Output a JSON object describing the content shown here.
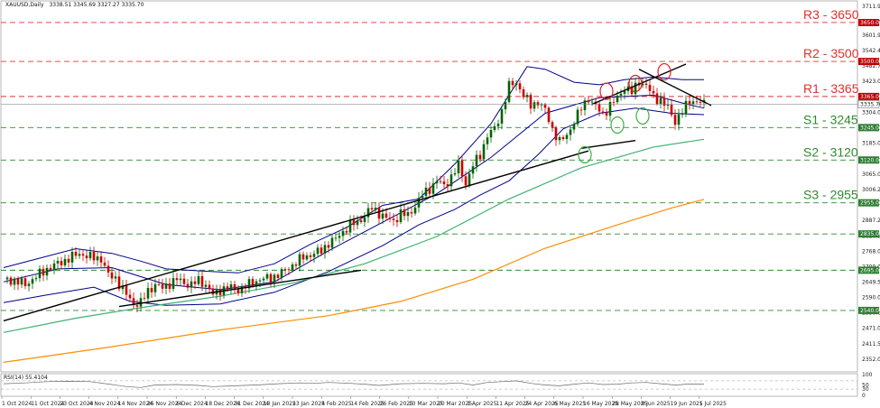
{
  "header": {
    "symbol": "XAUUSD,Daily",
    "ohlc": "3338.51 3345.69 3327.27 3335.70"
  },
  "rsi_header": "RSI(14) 55.4104",
  "chart_data": {
    "type": "candlestick",
    "title": "",
    "price_ylim": [
      2310,
      3730
    ],
    "y_ticks": [
      "3711.90",
      "3651.30",
      "3601.90",
      "3542.40",
      "3482.70",
      "3423.00",
      "3365.00",
      "3304.00",
      "3244.00",
      "3185.00",
      "3120.00",
      "3065.00",
      "3006.20",
      "2955.00",
      "2887.20",
      "2826.90",
      "2768.00",
      "2709.00",
      "2649.50",
      "2590.00",
      "2530.60",
      "2471.05",
      "2411.50",
      "2352.00"
    ],
    "current_price": "3335.70",
    "levels": [
      {
        "label": "R3 - 3650",
        "value": 3650,
        "tag": "3650.00",
        "kind": "resistance"
      },
      {
        "label": "R2 - 3500",
        "value": 3500,
        "tag": "3500.00",
        "kind": "resistance"
      },
      {
        "label": "R1 - 3365",
        "value": 3365,
        "tag": "3365.00",
        "kind": "resistance"
      },
      {
        "label": "S1 - 3245",
        "value": 3245,
        "tag": "3245.00",
        "kind": "support"
      },
      {
        "label": "S2 - 3120",
        "value": 3120,
        "tag": "3120.00",
        "kind": "support"
      },
      {
        "label": "S3 - 2955",
        "value": 2955,
        "tag": "2955.00",
        "kind": "support"
      },
      {
        "label": "",
        "value": 2835,
        "tag": "2835.00",
        "kind": "support"
      },
      {
        "label": "",
        "value": 2695,
        "tag": "2695.00",
        "kind": "support"
      },
      {
        "label": "",
        "value": 2540,
        "tag": "2540.00",
        "kind": "support"
      }
    ],
    "x_labels": [
      "1 Oct 2024",
      "11 Oct 2024",
      "23 Oct 2024",
      "4 Nov 2024",
      "14 Nov 2024",
      "26 Nov 2024",
      "6 Dec 2024",
      "18 Dec 2024",
      "31 Dec 2024",
      "13 Jan 2025",
      "23 Jan 2025",
      "4 Feb 2025",
      "14 Feb 2025",
      "26 Feb 2025",
      "10 Mar 2025",
      "20 Mar 2025",
      "1 Apr 2025",
      "11 Apr 2025",
      "24 Apr 2025",
      "6 May 2025",
      "16 May 2025",
      "28 May 2025",
      "9 Jun 2025",
      "19 Jun 2025",
      "1 Jul 2025"
    ],
    "price_path": [
      [
        0,
        2660
      ],
      [
        3,
        2655
      ],
      [
        6,
        2640
      ],
      [
        9,
        2670
      ],
      [
        12,
        2700
      ],
      [
        15,
        2720
      ],
      [
        18,
        2740
      ],
      [
        21,
        2760
      ],
      [
        24,
        2745
      ],
      [
        27,
        2740
      ],
      [
        29,
        2675
      ],
      [
        31,
        2665
      ],
      [
        33,
        2620
      ],
      [
        36,
        2565
      ],
      [
        38,
        2570
      ],
      [
        40,
        2615
      ],
      [
        42,
        2640
      ],
      [
        44,
        2625
      ],
      [
        46,
        2645
      ],
      [
        48,
        2660
      ],
      [
        50,
        2645
      ],
      [
        52,
        2640
      ],
      [
        54,
        2655
      ],
      [
        56,
        2640
      ],
      [
        58,
        2600
      ],
      [
        60,
        2620
      ],
      [
        62,
        2630
      ],
      [
        65,
        2620
      ],
      [
        68,
        2640
      ],
      [
        71,
        2660
      ],
      [
        74,
        2665
      ],
      [
        77,
        2685
      ],
      [
        80,
        2715
      ],
      [
        83,
        2745
      ],
      [
        86,
        2760
      ],
      [
        88,
        2770
      ],
      [
        90,
        2800
      ],
      [
        92,
        2815
      ],
      [
        94,
        2845
      ],
      [
        96,
        2870
      ],
      [
        98,
        2880
      ],
      [
        100,
        2905
      ],
      [
        102,
        2935
      ],
      [
        104,
        2915
      ],
      [
        106,
        2895
      ],
      [
        108,
        2885
      ],
      [
        110,
        2915
      ],
      [
        112,
        2905
      ],
      [
        114,
        2945
      ],
      [
        116,
        2985
      ],
      [
        118,
        3010
      ],
      [
        120,
        3040
      ],
      [
        122,
        3020
      ],
      [
        124,
        3055
      ],
      [
        126,
        3100
      ],
      [
        128,
        3030
      ],
      [
        130,
        3100
      ],
      [
        132,
        3140
      ],
      [
        134,
        3215
      ],
      [
        136,
        3240
      ],
      [
        138,
        3310
      ],
      [
        140,
        3405
      ],
      [
        142,
        3420
      ],
      [
        144,
        3370
      ],
      [
        146,
        3330
      ],
      [
        148,
        3345
      ],
      [
        150,
        3310
      ],
      [
        152,
        3240
      ],
      [
        154,
        3190
      ],
      [
        156,
        3215
      ],
      [
        158,
        3270
      ],
      [
        160,
        3320
      ],
      [
        162,
        3360
      ],
      [
        164,
        3325
      ],
      [
        166,
        3295
      ],
      [
        168,
        3330
      ],
      [
        170,
        3360
      ],
      [
        172,
        3400
      ],
      [
        174,
        3380
      ],
      [
        176,
        3425
      ],
      [
        178,
        3405
      ],
      [
        180,
        3365
      ],
      [
        182,
        3350
      ],
      [
        184,
        3320
      ],
      [
        186,
        3270
      ],
      [
        188,
        3305
      ],
      [
        190,
        3350
      ],
      [
        192,
        3345
      ],
      [
        194,
        3336
      ]
    ],
    "bollinger": {
      "upper": [
        [
          0,
          2705
        ],
        [
          20,
          2778
        ],
        [
          30,
          2760
        ],
        [
          38,
          2730
        ],
        [
          45,
          2700
        ],
        [
          55,
          2692
        ],
        [
          65,
          2685
        ],
        [
          75,
          2720
        ],
        [
          85,
          2795
        ],
        [
          95,
          2860
        ],
        [
          105,
          2945
        ],
        [
          115,
          2970
        ],
        [
          125,
          3105
        ],
        [
          135,
          3260
        ],
        [
          145,
          3480
        ],
        [
          150,
          3470
        ],
        [
          158,
          3420
        ],
        [
          165,
          3410
        ],
        [
          172,
          3430
        ],
        [
          180,
          3440
        ],
        [
          188,
          3430
        ],
        [
          194,
          3430
        ]
      ],
      "middle": [
        [
          0,
          2650
        ],
        [
          15,
          2700
        ],
        [
          30,
          2705
        ],
        [
          45,
          2640
        ],
        [
          60,
          2620
        ],
        [
          75,
          2650
        ],
        [
          90,
          2770
        ],
        [
          105,
          2880
        ],
        [
          120,
          2990
        ],
        [
          135,
          3130
        ],
        [
          150,
          3300
        ],
        [
          165,
          3360
        ],
        [
          180,
          3370
        ],
        [
          188,
          3340
        ],
        [
          194,
          3320
        ]
      ],
      "lower": [
        [
          0,
          2570
        ],
        [
          12,
          2600
        ],
        [
          25,
          2630
        ],
        [
          35,
          2575
        ],
        [
          45,
          2560
        ],
        [
          60,
          2565
        ],
        [
          75,
          2610
        ],
        [
          90,
          2690
        ],
        [
          105,
          2790
        ],
        [
          115,
          2870
        ],
        [
          125,
          2930
        ],
        [
          132,
          2985
        ],
        [
          140,
          3040
        ],
        [
          148,
          3140
        ],
        [
          155,
          3240
        ],
        [
          165,
          3300
        ],
        [
          175,
          3320
        ],
        [
          185,
          3300
        ],
        [
          194,
          3295
        ]
      ]
    },
    "ma_green": [
      [
        0,
        2455
      ],
      [
        20,
        2510
      ],
      [
        40,
        2555
      ],
      [
        60,
        2595
      ],
      [
        80,
        2645
      ],
      [
        100,
        2720
      ],
      [
        120,
        2825
      ],
      [
        140,
        2970
      ],
      [
        160,
        3090
      ],
      [
        180,
        3170
      ],
      [
        194,
        3200
      ]
    ],
    "ma_orange": [
      [
        0,
        2340
      ],
      [
        30,
        2400
      ],
      [
        60,
        2465
      ],
      [
        90,
        2520
      ],
      [
        110,
        2575
      ],
      [
        130,
        2660
      ],
      [
        150,
        2780
      ],
      [
        170,
        2870
      ],
      [
        185,
        2935
      ],
      [
        194,
        2968
      ]
    ],
    "trendlines": [
      [
        [
          0,
          2500
        ],
        [
          162,
          3155
        ]
      ],
      [
        [
          32,
          2555
        ],
        [
          99,
          2695
        ]
      ],
      [
        [
          160,
          3165
        ],
        [
          175,
          3195
        ]
      ],
      [
        [
          163,
          3335
        ],
        [
          189,
          3490
        ]
      ],
      [
        [
          176,
          3470
        ],
        [
          196,
          3330
        ]
      ]
    ],
    "circles": [
      {
        "x": 167,
        "y": 3385,
        "color": "#e02020"
      },
      {
        "x": 175,
        "y": 3415,
        "color": "#e02020"
      },
      {
        "x": 183,
        "y": 3460,
        "color": "#e02020"
      },
      {
        "x": 161,
        "y": 3140,
        "color": "#3cb043"
      },
      {
        "x": 170,
        "y": 3255,
        "color": "#3cb043"
      },
      {
        "x": 177,
        "y": 3290,
        "color": "#3cb043"
      }
    ],
    "rsi": {
      "name": "RSI(14)",
      "current": 55.4104,
      "ylim": [
        0,
        100
      ],
      "levels": [
        30,
        70
      ],
      "ticks": [
        "100",
        "50",
        "30",
        "0"
      ],
      "path": [
        [
          0,
          56
        ],
        [
          6,
          60
        ],
        [
          12,
          66
        ],
        [
          18,
          68
        ],
        [
          24,
          66
        ],
        [
          30,
          52
        ],
        [
          34,
          42
        ],
        [
          38,
          38
        ],
        [
          42,
          50
        ],
        [
          48,
          52
        ],
        [
          54,
          48
        ],
        [
          58,
          42
        ],
        [
          64,
          46
        ],
        [
          70,
          50
        ],
        [
          76,
          56
        ],
        [
          82,
          60
        ],
        [
          86,
          58
        ],
        [
          90,
          62
        ],
        [
          96,
          58
        ],
        [
          100,
          54
        ],
        [
          104,
          48
        ],
        [
          110,
          56
        ],
        [
          116,
          58
        ],
        [
          122,
          56
        ],
        [
          126,
          60
        ],
        [
          130,
          50
        ],
        [
          134,
          62
        ],
        [
          138,
          66
        ],
        [
          142,
          70
        ],
        [
          146,
          58
        ],
        [
          150,
          50
        ],
        [
          154,
          46
        ],
        [
          158,
          54
        ],
        [
          162,
          60
        ],
        [
          166,
          52
        ],
        [
          170,
          54
        ],
        [
          174,
          60
        ],
        [
          178,
          62
        ],
        [
          182,
          56
        ],
        [
          186,
          50
        ],
        [
          190,
          55
        ],
        [
          194,
          55
        ]
      ]
    }
  },
  "colors": {
    "resistance": "#e03030",
    "support": "#2e8b2e",
    "candle_up": "#006400",
    "candle_down": "#cc0000",
    "bollinger": "#00008b",
    "ma_green": "#3cb371",
    "ma_orange": "#ff8c00",
    "trendline": "#000000",
    "price_tag": "#c00000",
    "support_tag": "#2e7d32"
  }
}
